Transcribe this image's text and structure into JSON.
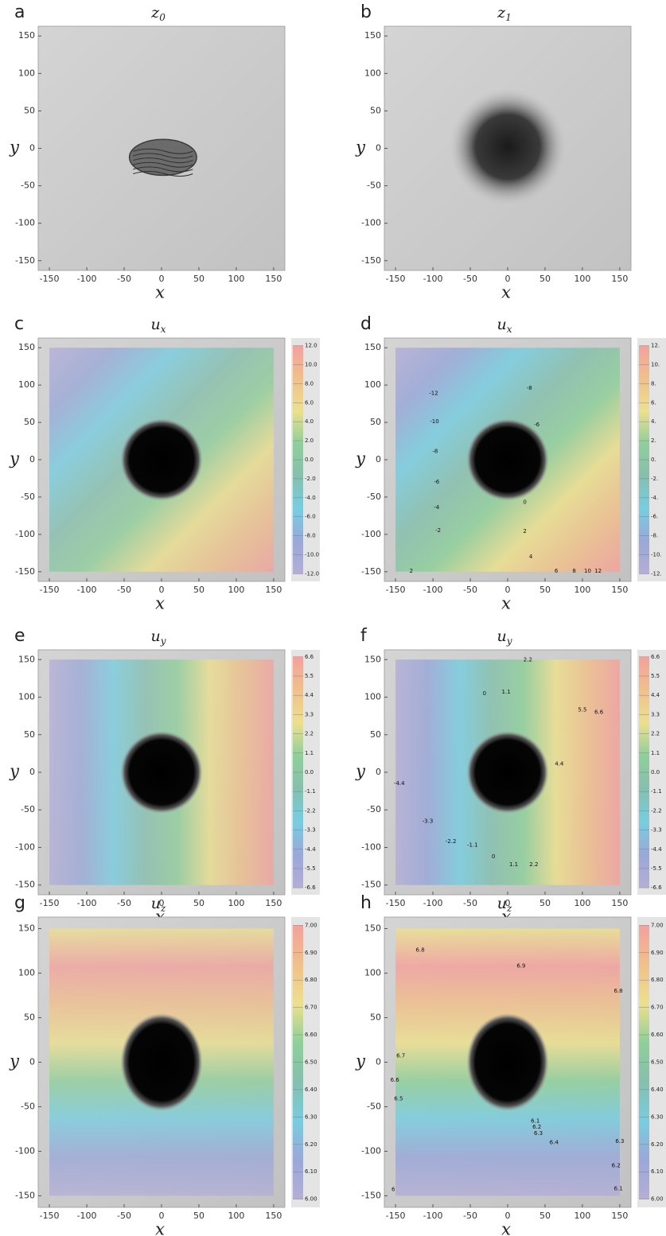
{
  "chart_data": [
    {
      "type": "image",
      "panel_label": "a",
      "title": "z",
      "title_subscript": "0",
      "xlabel": "x",
      "ylabel": "y",
      "xlim": [
        -165,
        165
      ],
      "ylim": [
        -163,
        163
      ],
      "xticks": [
        -150,
        -100,
        -50,
        0,
        50,
        100,
        150
      ],
      "yticks": [
        -150,
        -100,
        -50,
        0,
        50,
        100,
        150
      ]
    },
    {
      "type": "image",
      "panel_label": "b",
      "title": "z",
      "title_subscript": "1",
      "xlabel": "x",
      "ylabel": "y",
      "xlim": [
        -165,
        165
      ],
      "ylim": [
        -163,
        163
      ],
      "xticks": [
        -150,
        -100,
        -50,
        0,
        50,
        100,
        150
      ],
      "yticks": [
        -150,
        -100,
        -50,
        0,
        50,
        100,
        150
      ]
    },
    {
      "type": "heatmap",
      "panel_label": "c",
      "title": "u",
      "title_subscript": "x",
      "xlabel": "x",
      "ylabel": "y",
      "xlim": [
        -165,
        165
      ],
      "ylim": [
        -163,
        163
      ],
      "xticks": [
        -150,
        -100,
        -50,
        0,
        50,
        100,
        150
      ],
      "yticks": [
        -150,
        -100,
        -50,
        0,
        50,
        100,
        150
      ],
      "colormap": [
        "#f3a19d",
        "#f0c08c",
        "#ece08e",
        "#8fcf9a",
        "#86bfae",
        "#78cde0",
        "#9aa8d8",
        "#b4aed6"
      ],
      "clim": [
        -12.8,
        12.8
      ],
      "cticks": [
        {
          "value": 12,
          "label": "12.0"
        },
        {
          "value": 10,
          "label": "10.0"
        },
        {
          "value": 8,
          "label": "8.0"
        },
        {
          "value": 6,
          "label": "6.0"
        },
        {
          "value": 4,
          "label": "4.0"
        },
        {
          "value": 2,
          "label": "2.0"
        },
        {
          "value": 0,
          "label": "0.0"
        },
        {
          "value": -2,
          "label": "-2.0"
        },
        {
          "value": -4,
          "label": "-4.0"
        },
        {
          "value": -6,
          "label": "-6.0"
        },
        {
          "value": -8,
          "label": "-8.0"
        },
        {
          "value": -10,
          "label": "-10.0"
        },
        {
          "value": -12,
          "label": "-12.0"
        }
      ]
    },
    {
      "type": "contour",
      "panel_label": "d",
      "title": "u",
      "title_subscript": "x",
      "xlabel": "x",
      "ylabel": "y",
      "xlim": [
        -165,
        165
      ],
      "ylim": [
        -163,
        163
      ],
      "xticks": [
        -150,
        -100,
        -50,
        0,
        50,
        100,
        150
      ],
      "yticks": [
        -150,
        -100,
        -50,
        0,
        50,
        100,
        150
      ],
      "colormap": [
        "#f3a19d",
        "#f0c08c",
        "#ece08e",
        "#8fcf9a",
        "#86bfae",
        "#78cde0",
        "#9aa8d8",
        "#b4aed6"
      ],
      "clim": [
        -12.8,
        12.8
      ],
      "cticks": [
        {
          "value": 12,
          "label": "12."
        },
        {
          "value": 10,
          "label": "10."
        },
        {
          "value": 8,
          "label": "8."
        },
        {
          "value": 6,
          "label": "6."
        },
        {
          "value": 4,
          "label": "4."
        },
        {
          "value": 2,
          "label": "2."
        },
        {
          "value": 0,
          "label": "0."
        },
        {
          "value": -2,
          "label": "-2."
        },
        {
          "value": -4,
          "label": "-4."
        },
        {
          "value": -6,
          "label": "-6."
        },
        {
          "value": -8,
          "label": "-8."
        },
        {
          "value": -10,
          "label": "-10."
        },
        {
          "value": -12,
          "label": "-12."
        }
      ],
      "annotations": [
        {
          "text": "-12",
          "x": -99,
          "y": 89
        },
        {
          "text": "-10",
          "x": -98,
          "y": 51
        },
        {
          "text": "-8",
          "x": -97,
          "y": 11
        },
        {
          "text": "-6",
          "x": -95,
          "y": -30
        },
        {
          "text": "-4",
          "x": -95,
          "y": -64
        },
        {
          "text": "-2",
          "x": -93,
          "y": -95
        },
        {
          "text": "-8",
          "x": 29,
          "y": 96
        },
        {
          "text": "-6",
          "x": 39,
          "y": 47
        },
        {
          "text": "0",
          "x": 23,
          "y": -57
        },
        {
          "text": "2",
          "x": 23,
          "y": -96
        },
        {
          "text": "4",
          "x": 31,
          "y": -130
        },
        {
          "text": "2",
          "x": -129,
          "y": -149
        },
        {
          "text": "6",
          "x": 65,
          "y": -149
        },
        {
          "text": "8",
          "x": 89,
          "y": -149
        },
        {
          "text": "10",
          "x": 107,
          "y": -149
        },
        {
          "text": "12",
          "x": 121,
          "y": -149
        }
      ]
    },
    {
      "type": "heatmap",
      "panel_label": "e",
      "title": "u",
      "title_subscript": "y",
      "xlabel": "x",
      "ylabel": "y",
      "xlim": [
        -165,
        165
      ],
      "ylim": [
        -163,
        163
      ],
      "xticks": [
        -150,
        -100,
        -50,
        0,
        50,
        100,
        150
      ],
      "yticks": [
        -150,
        -100,
        -50,
        0,
        50,
        100,
        150
      ],
      "colormap": [
        "#f3a19d",
        "#f0c08c",
        "#ece08e",
        "#8fcf9a",
        "#86bfae",
        "#78cde0",
        "#9aa8d8",
        "#b4aed6"
      ],
      "clim": [
        -7.0,
        7.0
      ],
      "cticks": [
        6.6,
        5.5,
        4.4,
        3.3,
        2.2,
        1.1,
        {
          "value": 0,
          "label": "0.0"
        },
        -1.1,
        -2.2,
        -3.3,
        -4.4,
        -5.5,
        -6.6
      ]
    },
    {
      "type": "contour",
      "panel_label": "f",
      "title": "u",
      "title_subscript": "y",
      "xlabel": "x",
      "ylabel": "y",
      "xlim": [
        -165,
        165
      ],
      "ylim": [
        -163,
        163
      ],
      "xticks": [
        -150,
        -100,
        -50,
        0,
        50,
        100,
        150
      ],
      "yticks": [
        -150,
        -100,
        -50,
        0,
        50,
        100,
        150
      ],
      "colormap": [
        "#f3a19d",
        "#f0c08c",
        "#ece08e",
        "#8fcf9a",
        "#86bfae",
        "#78cde0",
        "#9aa8d8",
        "#b4aed6"
      ],
      "clim": [
        -7.0,
        7.0
      ],
      "cticks": [
        6.6,
        5.5,
        4.4,
        3.3,
        2.2,
        1.1,
        {
          "value": 0,
          "label": "0.0"
        },
        -1.1,
        -2.2,
        -3.3,
        -4.4,
        -5.5,
        -6.6
      ],
      "annotations": [
        {
          "text": "0",
          "x": -31,
          "y": 105
        },
        {
          "text": "1.1",
          "x": -2,
          "y": 107
        },
        {
          "text": "2.2",
          "x": 27,
          "y": 150
        },
        {
          "text": "5.5",
          "x": 100,
          "y": 83
        },
        {
          "text": "6.6",
          "x": 122,
          "y": 80
        },
        {
          "text": "4.4",
          "x": 69,
          "y": 11
        },
        {
          "text": "-4.4",
          "x": -145,
          "y": -15
        },
        {
          "text": "-3.3",
          "x": -107,
          "y": -65
        },
        {
          "text": "-2.2",
          "x": -76,
          "y": -92
        },
        {
          "text": "-1.1",
          "x": -47,
          "y": -97
        },
        {
          "text": "0",
          "x": -19,
          "y": -112
        },
        {
          "text": "1.1",
          "x": 8,
          "y": -123
        },
        {
          "text": "2.2",
          "x": 35,
          "y": -123
        }
      ]
    },
    {
      "type": "heatmap",
      "panel_label": "g",
      "title": "u",
      "title_subscript": "z",
      "xlabel": "x",
      "ylabel": "y",
      "xlim": [
        -165,
        165
      ],
      "ylim": [
        -163,
        163
      ],
      "xticks": [
        -150,
        -100,
        -50,
        0,
        50,
        100,
        150
      ],
      "yticks": [
        -150,
        -100,
        -50,
        0,
        50,
        100,
        150
      ],
      "colormap": [
        "#f3a19d",
        "#f0c08c",
        "#ece08e",
        "#8fcf9a",
        "#86bfae",
        "#78cde0",
        "#9aa8d8",
        "#b4aed6"
      ],
      "clim": [
        5.97,
        7.03
      ],
      "cticks": [
        {
          "value": 7,
          "label": "7.00"
        },
        {
          "value": 6.9,
          "label": "6.90"
        },
        {
          "value": 6.8,
          "label": "6.80"
        },
        {
          "value": 6.7,
          "label": "6.70"
        },
        {
          "value": 6.6,
          "label": "6.60"
        },
        {
          "value": 6.5,
          "label": "6.50"
        },
        {
          "value": 6.4,
          "label": "6.40"
        },
        {
          "value": 6.3,
          "label": "6.30"
        },
        {
          "value": 6.2,
          "label": "6.20"
        },
        {
          "value": 6.1,
          "label": "6.10"
        },
        {
          "value": 6,
          "label": "6.00"
        }
      ]
    },
    {
      "type": "contour",
      "panel_label": "h",
      "title": "u",
      "title_subscript": "z",
      "xlabel": "x",
      "ylabel": "y",
      "xlim": [
        -165,
        165
      ],
      "ylim": [
        -163,
        163
      ],
      "xticks": [
        -150,
        -100,
        -50,
        0,
        50,
        100,
        150
      ],
      "yticks": [
        -150,
        -100,
        -50,
        0,
        50,
        100,
        150
      ],
      "colormap": [
        "#f3a19d",
        "#f0c08c",
        "#ece08e",
        "#8fcf9a",
        "#86bfae",
        "#78cde0",
        "#9aa8d8",
        "#b4aed6"
      ],
      "clim": [
        5.97,
        7.03
      ],
      "cticks": [
        {
          "value": 7,
          "label": "7.00"
        },
        {
          "value": 6.9,
          "label": "6.90"
        },
        {
          "value": 6.8,
          "label": "6.80"
        },
        {
          "value": 6.7,
          "label": "6.70"
        },
        {
          "value": 6.6,
          "label": "6.60"
        },
        {
          "value": 6.5,
          "label": "6.50"
        },
        {
          "value": 6.4,
          "label": "6.40"
        },
        {
          "value": 6.3,
          "label": "6.30"
        },
        {
          "value": 6.2,
          "label": "6.20"
        },
        {
          "value": 6.1,
          "label": "6.10"
        },
        {
          "value": 6,
          "label": "6.00"
        }
      ],
      "annotations": [
        {
          "text": "6.8",
          "x": -117,
          "y": 126
        },
        {
          "text": "6.9",
          "x": 18,
          "y": 108
        },
        {
          "text": "6.8",
          "x": 148,
          "y": 80
        },
        {
          "text": "6.7",
          "x": -143,
          "y": 7
        },
        {
          "text": "6.6",
          "x": -151,
          "y": -20
        },
        {
          "text": "6.5",
          "x": -146,
          "y": -41
        },
        {
          "text": "6.1",
          "x": 37,
          "y": -66
        },
        {
          "text": "6.2",
          "x": 39,
          "y": -73
        },
        {
          "text": "6.3",
          "x": 41,
          "y": -80
        },
        {
          "text": "6.4",
          "x": 62,
          "y": -90
        },
        {
          "text": "6.3",
          "x": 150,
          "y": -89
        },
        {
          "text": "6.2",
          "x": 145,
          "y": -116
        },
        {
          "text": "6.1",
          "x": 148,
          "y": -142
        },
        {
          "text": "6",
          "x": -153,
          "y": -143
        }
      ]
    }
  ]
}
